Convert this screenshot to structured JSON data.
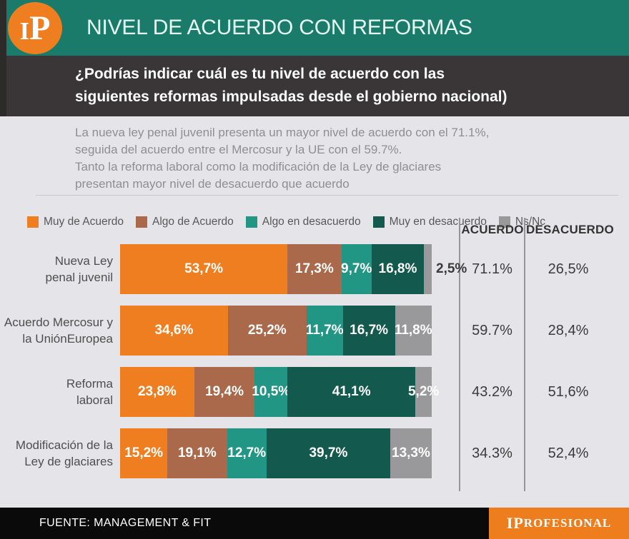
{
  "header": {
    "logo_text": "IP",
    "title": "NIVEL DE ACUERDO CON REFORMAS"
  },
  "question": {
    "line1": "¿Podrías indicar cuál es tu nivel de acuerdo con las",
    "line2": "siguientes reformas impulsadas desde el gobierno nacional)"
  },
  "intro": {
    "lines": [
      "La nueva ley penal juvenil presenta un mayor nivel de acuerdo con el 71.1%,",
      "seguida del acuerdo entre el Mercosur y la UE con el 59.7%.",
      "Tanto la reforma laboral como la modificación de la Ley de glaciares",
      "presentan mayor nivel de desacuerdo que acuerdo"
    ]
  },
  "colors": {
    "header_teal": "#1a7b6a",
    "muy_acuerdo": "#ee7e1f",
    "algo_acuerdo": "#a9694a",
    "algo_desacuerdo": "#219684",
    "muy_desacuerdo": "#14594e",
    "nsnc": "#99999b",
    "footer_orange": "#ee7d1e"
  },
  "legend": [
    {
      "label": "Muy de Acuerdo",
      "color_key": "muy_acuerdo"
    },
    {
      "label": "Algo de Acuerdo",
      "color_key": "algo_acuerdo"
    },
    {
      "label": "Algo en desacuerdo",
      "color_key": "algo_desacuerdo"
    },
    {
      "label": "Muy en desacuerdo",
      "color_key": "muy_desacuerdo"
    },
    {
      "label": "Ns/Nc",
      "color_key": "nsnc"
    }
  ],
  "summary_columns": {
    "acuerdo": "ACUERDO",
    "desacuerdo": "DESACUERDO"
  },
  "chart_data": {
    "type": "bar",
    "stacked": true,
    "orientation": "horizontal",
    "x_unit": "percent",
    "xlim": [
      0,
      100
    ],
    "series": [
      {
        "name": "Muy de Acuerdo",
        "color_key": "muy_acuerdo"
      },
      {
        "name": "Algo de Acuerdo",
        "color_key": "algo_acuerdo"
      },
      {
        "name": "Algo en desacuerdo",
        "color_key": "algo_desacuerdo"
      },
      {
        "name": "Muy en desacuerdo",
        "color_key": "muy_desacuerdo"
      },
      {
        "name": "Ns/Nc",
        "color_key": "nsnc"
      }
    ],
    "rows": [
      {
        "category": [
          "Nueva Ley",
          "penal juvenil"
        ],
        "values": [
          53.7,
          17.3,
          9.7,
          16.8,
          2.5
        ],
        "labels": [
          "53,7%",
          "17,3%",
          "9,7%",
          "16,8%",
          "2,5%"
        ],
        "acuerdo": "71.1%",
        "desacuerdo": "26,5%"
      },
      {
        "category": [
          "Acuerdo Mercosur y",
          "la UniónEuropea"
        ],
        "values": [
          34.6,
          25.2,
          11.7,
          16.7,
          11.8
        ],
        "labels": [
          "34,6%",
          "25,2%",
          "11,7%",
          "16,7%",
          "11,8%"
        ],
        "acuerdo": "59.7%",
        "desacuerdo": "28,4%"
      },
      {
        "category": [
          "Reforma",
          "laboral"
        ],
        "values": [
          23.8,
          19.4,
          10.5,
          41.1,
          5.2
        ],
        "labels": [
          "23,8%",
          "19,4%",
          "10,5%",
          "41,1%",
          "5,2%"
        ],
        "acuerdo": "43.2%",
        "desacuerdo": "51,6%"
      },
      {
        "category": [
          "Modificación de la",
          "Ley de glaciares"
        ],
        "values": [
          15.2,
          19.1,
          12.7,
          39.7,
          13.3
        ],
        "labels": [
          "15,2%",
          "19,1%",
          "12,7%",
          "39,7%",
          "13,3%"
        ],
        "acuerdo": "34.3%",
        "desacuerdo": "52,4%"
      }
    ]
  },
  "footer": {
    "source": "FUENTE: MANAGEMENT & FIT",
    "brand_prefix": "IP",
    "brand_suffix": "ROFESIONAL"
  }
}
